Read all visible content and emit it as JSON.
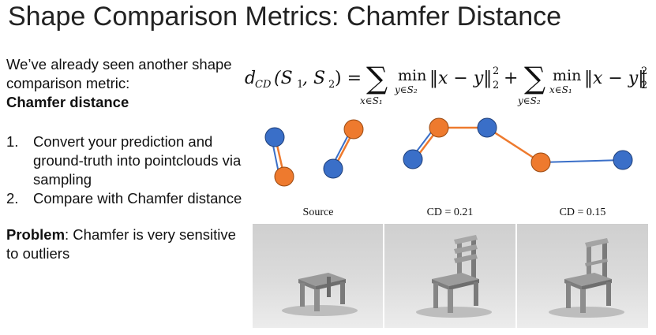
{
  "title": "Shape Comparison Metrics: Chamfer Distance",
  "intro_line": "We’ve already seen another shape comparison metric:",
  "intro_bold": "Chamfer distance",
  "steps": [
    {
      "num": "1.",
      "text": "Convert your prediction and ground-truth into pointclouds via sampling"
    },
    {
      "num": "2.",
      "text": "Compare with Chamfer distance"
    }
  ],
  "problem_label": "Problem",
  "problem_text": ": Chamfer is very sensitive to outliers",
  "formula": {
    "lhs": "d",
    "lhs_sub": "CD",
    "lhs_args": "(S",
    "args_mid": ", S",
    "args_end": ") =",
    "sum1_under": "x∈S₁",
    "min1_under": "y∈S₂",
    "term": "‖x − y‖",
    "plus": "+",
    "sum2_under": "y∈S₂",
    "min2_under": "x∈S₁",
    "min": "min",
    "sq": "2",
    "norm_sub": "2"
  },
  "captions": [
    "Source",
    "CD = 0.21",
    "CD = 0.15"
  ],
  "colors": {
    "blue": "#3a6fc8",
    "orange": "#ee7a2e"
  }
}
